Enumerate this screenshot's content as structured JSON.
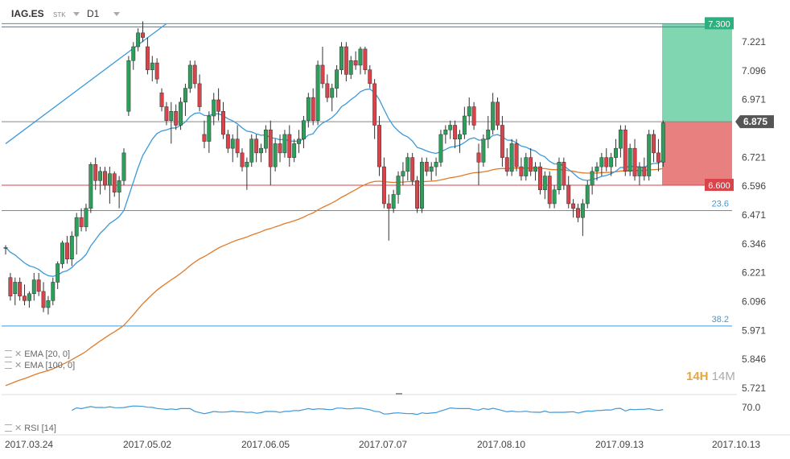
{
  "header": {
    "symbol": "IAG.ES",
    "asset_type": "STK",
    "timeframe": "D1"
  },
  "indicators": {
    "ema_fast": "EMA  [20, 0]",
    "ema_slow": "EMA  [100, 0]",
    "rsi": "RSI  [14]"
  },
  "timeframe_badge": {
    "h": "14H",
    "m": "14M"
  },
  "colors": {
    "up": "#2e9e5b",
    "down": "#d9434a",
    "ema_fast": "#3b9ad9",
    "ema_slow": "#e07b2a",
    "profit_zone": "#7fd6b0",
    "loss_zone": "#e88080",
    "fib_line": "#3b9ad9"
  },
  "chart_data": {
    "type": "candlestick",
    "ylim": [
      5.7,
      7.32
    ],
    "y_ticks": [
      7.221,
      7.096,
      6.971,
      6.846,
      6.721,
      6.596,
      6.471,
      6.346,
      6.221,
      6.096,
      5.971,
      5.846,
      5.721
    ],
    "y_tick_labels": [
      "7.221",
      "7.096",
      "6.971",
      "",
      "6.721",
      "6.596",
      "6.471",
      "6.346",
      "6.221",
      "6.096",
      "5.971",
      "5.846",
      "5.721"
    ],
    "x_tick_labels": [
      "2017.03.24",
      "2017.05.02",
      "2017.06.05",
      "2017.07.07",
      "2017.08.10",
      "2017.09.13",
      "2017.10.13"
    ],
    "price_labels": {
      "take_profit": "7.300",
      "current": "6.875",
      "stop_loss": "6.600"
    },
    "levels": {
      "take_profit": 7.3,
      "current": 6.875,
      "stop_loss": 6.6
    },
    "fib_levels": [
      {
        "label": "23.6",
        "value": 6.49
      },
      {
        "label": "38.2",
        "value": 5.99
      }
    ],
    "trendline": {
      "from": [
        0,
        6.78
      ],
      "to": [
        34,
        7.3
      ]
    },
    "rsi_label": "70.0",
    "candles": [
      [
        6.33,
        6.34,
        6.3,
        6.33
      ],
      [
        6.2,
        6.22,
        6.1,
        6.12
      ],
      [
        6.13,
        6.2,
        6.08,
        6.18
      ],
      [
        6.18,
        6.2,
        6.1,
        6.12
      ],
      [
        6.12,
        6.17,
        6.08,
        6.1
      ],
      [
        6.1,
        6.14,
        6.07,
        6.13
      ],
      [
        6.13,
        6.22,
        6.1,
        6.19
      ],
      [
        6.19,
        6.22,
        6.12,
        6.14
      ],
      [
        6.14,
        6.18,
        6.05,
        6.07
      ],
      [
        6.07,
        6.12,
        6.04,
        6.1
      ],
      [
        6.1,
        6.2,
        6.08,
        6.18
      ],
      [
        6.18,
        6.27,
        6.15,
        6.26
      ],
      [
        6.26,
        6.36,
        6.24,
        6.35
      ],
      [
        6.35,
        6.38,
        6.26,
        6.28
      ],
      [
        6.28,
        6.4,
        6.25,
        6.38
      ],
      [
        6.38,
        6.48,
        6.3,
        6.46
      ],
      [
        6.46,
        6.5,
        6.4,
        6.42
      ],
      [
        6.42,
        6.52,
        6.4,
        6.5
      ],
      [
        6.5,
        6.7,
        6.48,
        6.69
      ],
      [
        6.69,
        6.72,
        6.58,
        6.62
      ],
      [
        6.62,
        6.68,
        6.56,
        6.66
      ],
      [
        6.66,
        6.68,
        6.58,
        6.6
      ],
      [
        6.6,
        6.68,
        6.52,
        6.65
      ],
      [
        6.65,
        6.66,
        6.55,
        6.57
      ],
      [
        6.57,
        6.64,
        6.5,
        6.62
      ],
      [
        6.62,
        6.76,
        6.6,
        6.74
      ],
      [
        6.92,
        7.16,
        6.9,
        7.14
      ],
      [
        7.14,
        7.22,
        7.1,
        7.2
      ],
      [
        7.2,
        7.28,
        7.18,
        7.26
      ],
      [
        7.26,
        7.31,
        7.22,
        7.24
      ],
      [
        7.2,
        7.24,
        7.08,
        7.1
      ],
      [
        7.1,
        7.16,
        7.05,
        7.13
      ],
      [
        7.13,
        7.15,
        7.04,
        7.06
      ],
      [
        7.0,
        7.02,
        6.92,
        6.94
      ],
      [
        6.94,
        6.96,
        6.86,
        6.88
      ],
      [
        6.88,
        6.96,
        6.78,
        6.92
      ],
      [
        6.92,
        6.95,
        6.84,
        6.86
      ],
      [
        6.86,
        6.98,
        6.84,
        6.96
      ],
      [
        6.96,
        7.04,
        6.9,
        7.02
      ],
      [
        7.02,
        7.14,
        7.0,
        7.12
      ],
      [
        7.12,
        7.14,
        7.02,
        7.04
      ],
      [
        7.04,
        7.08,
        6.92,
        6.94
      ],
      [
        6.82,
        6.88,
        6.76,
        6.79
      ],
      [
        6.79,
        6.92,
        6.74,
        6.9
      ],
      [
        6.9,
        7.0,
        6.86,
        6.97
      ],
      [
        6.97,
        7.02,
        6.88,
        6.92
      ],
      [
        6.92,
        6.96,
        6.8,
        6.82
      ],
      [
        6.82,
        6.84,
        6.74,
        6.76
      ],
      [
        6.76,
        6.82,
        6.7,
        6.8
      ],
      [
        6.8,
        6.86,
        6.72,
        6.74
      ],
      [
        6.74,
        6.76,
        6.66,
        6.68
      ],
      [
        6.68,
        6.72,
        6.58,
        6.7
      ],
      [
        6.7,
        6.82,
        6.68,
        6.8
      ],
      [
        6.8,
        6.82,
        6.7,
        6.74
      ],
      [
        6.74,
        6.78,
        6.7,
        6.76
      ],
      [
        6.76,
        6.86,
        6.74,
        6.84
      ],
      [
        6.84,
        6.88,
        6.6,
        6.68
      ],
      [
        6.68,
        6.8,
        6.66,
        6.78
      ],
      [
        6.78,
        6.82,
        6.7,
        6.74
      ],
      [
        6.74,
        6.84,
        6.72,
        6.82
      ],
      [
        6.82,
        6.86,
        6.68,
        6.72
      ],
      [
        6.72,
        6.8,
        6.7,
        6.78
      ],
      [
        6.78,
        6.84,
        6.74,
        6.8
      ],
      [
        6.8,
        6.9,
        6.76,
        6.88
      ],
      [
        6.88,
        7.0,
        6.85,
        6.98
      ],
      [
        6.98,
        7.02,
        6.86,
        6.88
      ],
      [
        6.88,
        7.14,
        6.86,
        7.12
      ],
      [
        7.12,
        7.2,
        7.02,
        7.04
      ],
      [
        7.04,
        7.08,
        6.96,
        6.98
      ],
      [
        6.98,
        7.04,
        6.92,
        7.02
      ],
      [
        7.02,
        7.12,
        6.98,
        7.1
      ],
      [
        7.1,
        7.22,
        7.08,
        7.2
      ],
      [
        7.2,
        7.22,
        7.05,
        7.08
      ],
      [
        7.08,
        7.16,
        7.06,
        7.14
      ],
      [
        7.14,
        7.18,
        7.1,
        7.12
      ],
      [
        7.12,
        7.2,
        7.08,
        7.19
      ],
      [
        7.19,
        7.2,
        7.08,
        7.1
      ],
      [
        7.1,
        7.12,
        7.02,
        7.04
      ],
      [
        7.04,
        7.06,
        6.8,
        6.86
      ],
      [
        6.86,
        6.9,
        6.64,
        6.68
      ],
      [
        6.68,
        6.72,
        6.5,
        6.52
      ],
      [
        6.52,
        6.56,
        6.36,
        6.5
      ],
      [
        6.5,
        6.58,
        6.48,
        6.56
      ],
      [
        6.56,
        6.66,
        6.52,
        6.64
      ],
      [
        6.64,
        6.7,
        6.6,
        6.66
      ],
      [
        6.66,
        6.74,
        6.62,
        6.72
      ],
      [
        6.72,
        6.74,
        6.6,
        6.62
      ],
      [
        6.62,
        6.64,
        6.48,
        6.5
      ],
      [
        6.5,
        6.72,
        6.48,
        6.7
      ],
      [
        6.7,
        6.72,
        6.64,
        6.66
      ],
      [
        6.66,
        6.7,
        6.62,
        6.68
      ],
      [
        6.68,
        6.72,
        6.64,
        6.7
      ],
      [
        6.7,
        6.84,
        6.68,
        6.82
      ],
      [
        6.82,
        6.86,
        6.78,
        6.84
      ],
      [
        6.84,
        6.88,
        6.8,
        6.86
      ],
      [
        6.86,
        6.88,
        6.76,
        6.8
      ],
      [
        6.8,
        6.84,
        6.74,
        6.82
      ],
      [
        6.82,
        6.94,
        6.8,
        6.9
      ],
      [
        6.9,
        6.98,
        6.86,
        6.94
      ],
      [
        6.94,
        6.96,
        6.84,
        6.86
      ],
      [
        6.74,
        6.78,
        6.6,
        6.7
      ],
      [
        6.7,
        6.82,
        6.68,
        6.8
      ],
      [
        6.8,
        6.9,
        6.76,
        6.84
      ],
      [
        6.84,
        7.0,
        6.82,
        6.96
      ],
      [
        6.96,
        6.98,
        6.84,
        6.86
      ],
      [
        6.86,
        6.9,
        6.68,
        6.72
      ],
      [
        6.72,
        6.76,
        6.64,
        6.66
      ],
      [
        6.66,
        6.8,
        6.64,
        6.78
      ],
      [
        6.78,
        6.8,
        6.66,
        6.68
      ],
      [
        6.68,
        6.72,
        6.62,
        6.64
      ],
      [
        6.64,
        6.74,
        6.62,
        6.72
      ],
      [
        6.72,
        6.76,
        6.64,
        6.66
      ],
      [
        6.66,
        6.7,
        6.62,
        6.68
      ],
      [
        6.68,
        6.7,
        6.56,
        6.58
      ],
      [
        6.58,
        6.66,
        6.54,
        6.64
      ],
      [
        6.64,
        6.66,
        6.5,
        6.52
      ],
      [
        6.52,
        6.6,
        6.5,
        6.58
      ],
      [
        6.58,
        6.72,
        6.56,
        6.7
      ],
      [
        6.7,
        6.72,
        6.58,
        6.6
      ],
      [
        6.6,
        6.64,
        6.5,
        6.52
      ],
      [
        6.52,
        6.54,
        6.46,
        6.5
      ],
      [
        6.5,
        6.52,
        6.44,
        6.46
      ],
      [
        6.46,
        6.54,
        6.38,
        6.52
      ],
      [
        6.52,
        6.62,
        6.5,
        6.6
      ],
      [
        6.6,
        6.68,
        6.56,
        6.66
      ],
      [
        6.66,
        6.7,
        6.62,
        6.68
      ],
      [
        6.68,
        6.74,
        6.64,
        6.72
      ],
      [
        6.72,
        6.76,
        6.66,
        6.68
      ],
      [
        6.68,
        6.74,
        6.64,
        6.72
      ],
      [
        6.72,
        6.8,
        6.68,
        6.76
      ],
      [
        6.76,
        6.86,
        6.72,
        6.84
      ],
      [
        6.84,
        6.86,
        6.64,
        6.66
      ],
      [
        6.66,
        6.78,
        6.64,
        6.76
      ],
      [
        6.76,
        6.8,
        6.62,
        6.64
      ],
      [
        6.64,
        6.7,
        6.6,
        6.68
      ],
      [
        6.68,
        6.72,
        6.62,
        6.64
      ],
      [
        6.64,
        6.84,
        6.62,
        6.82
      ],
      [
        6.82,
        6.84,
        6.7,
        6.74
      ],
      [
        6.74,
        6.8,
        6.66,
        6.7
      ],
      [
        6.7,
        6.88,
        6.68,
        6.87
      ]
    ]
  }
}
